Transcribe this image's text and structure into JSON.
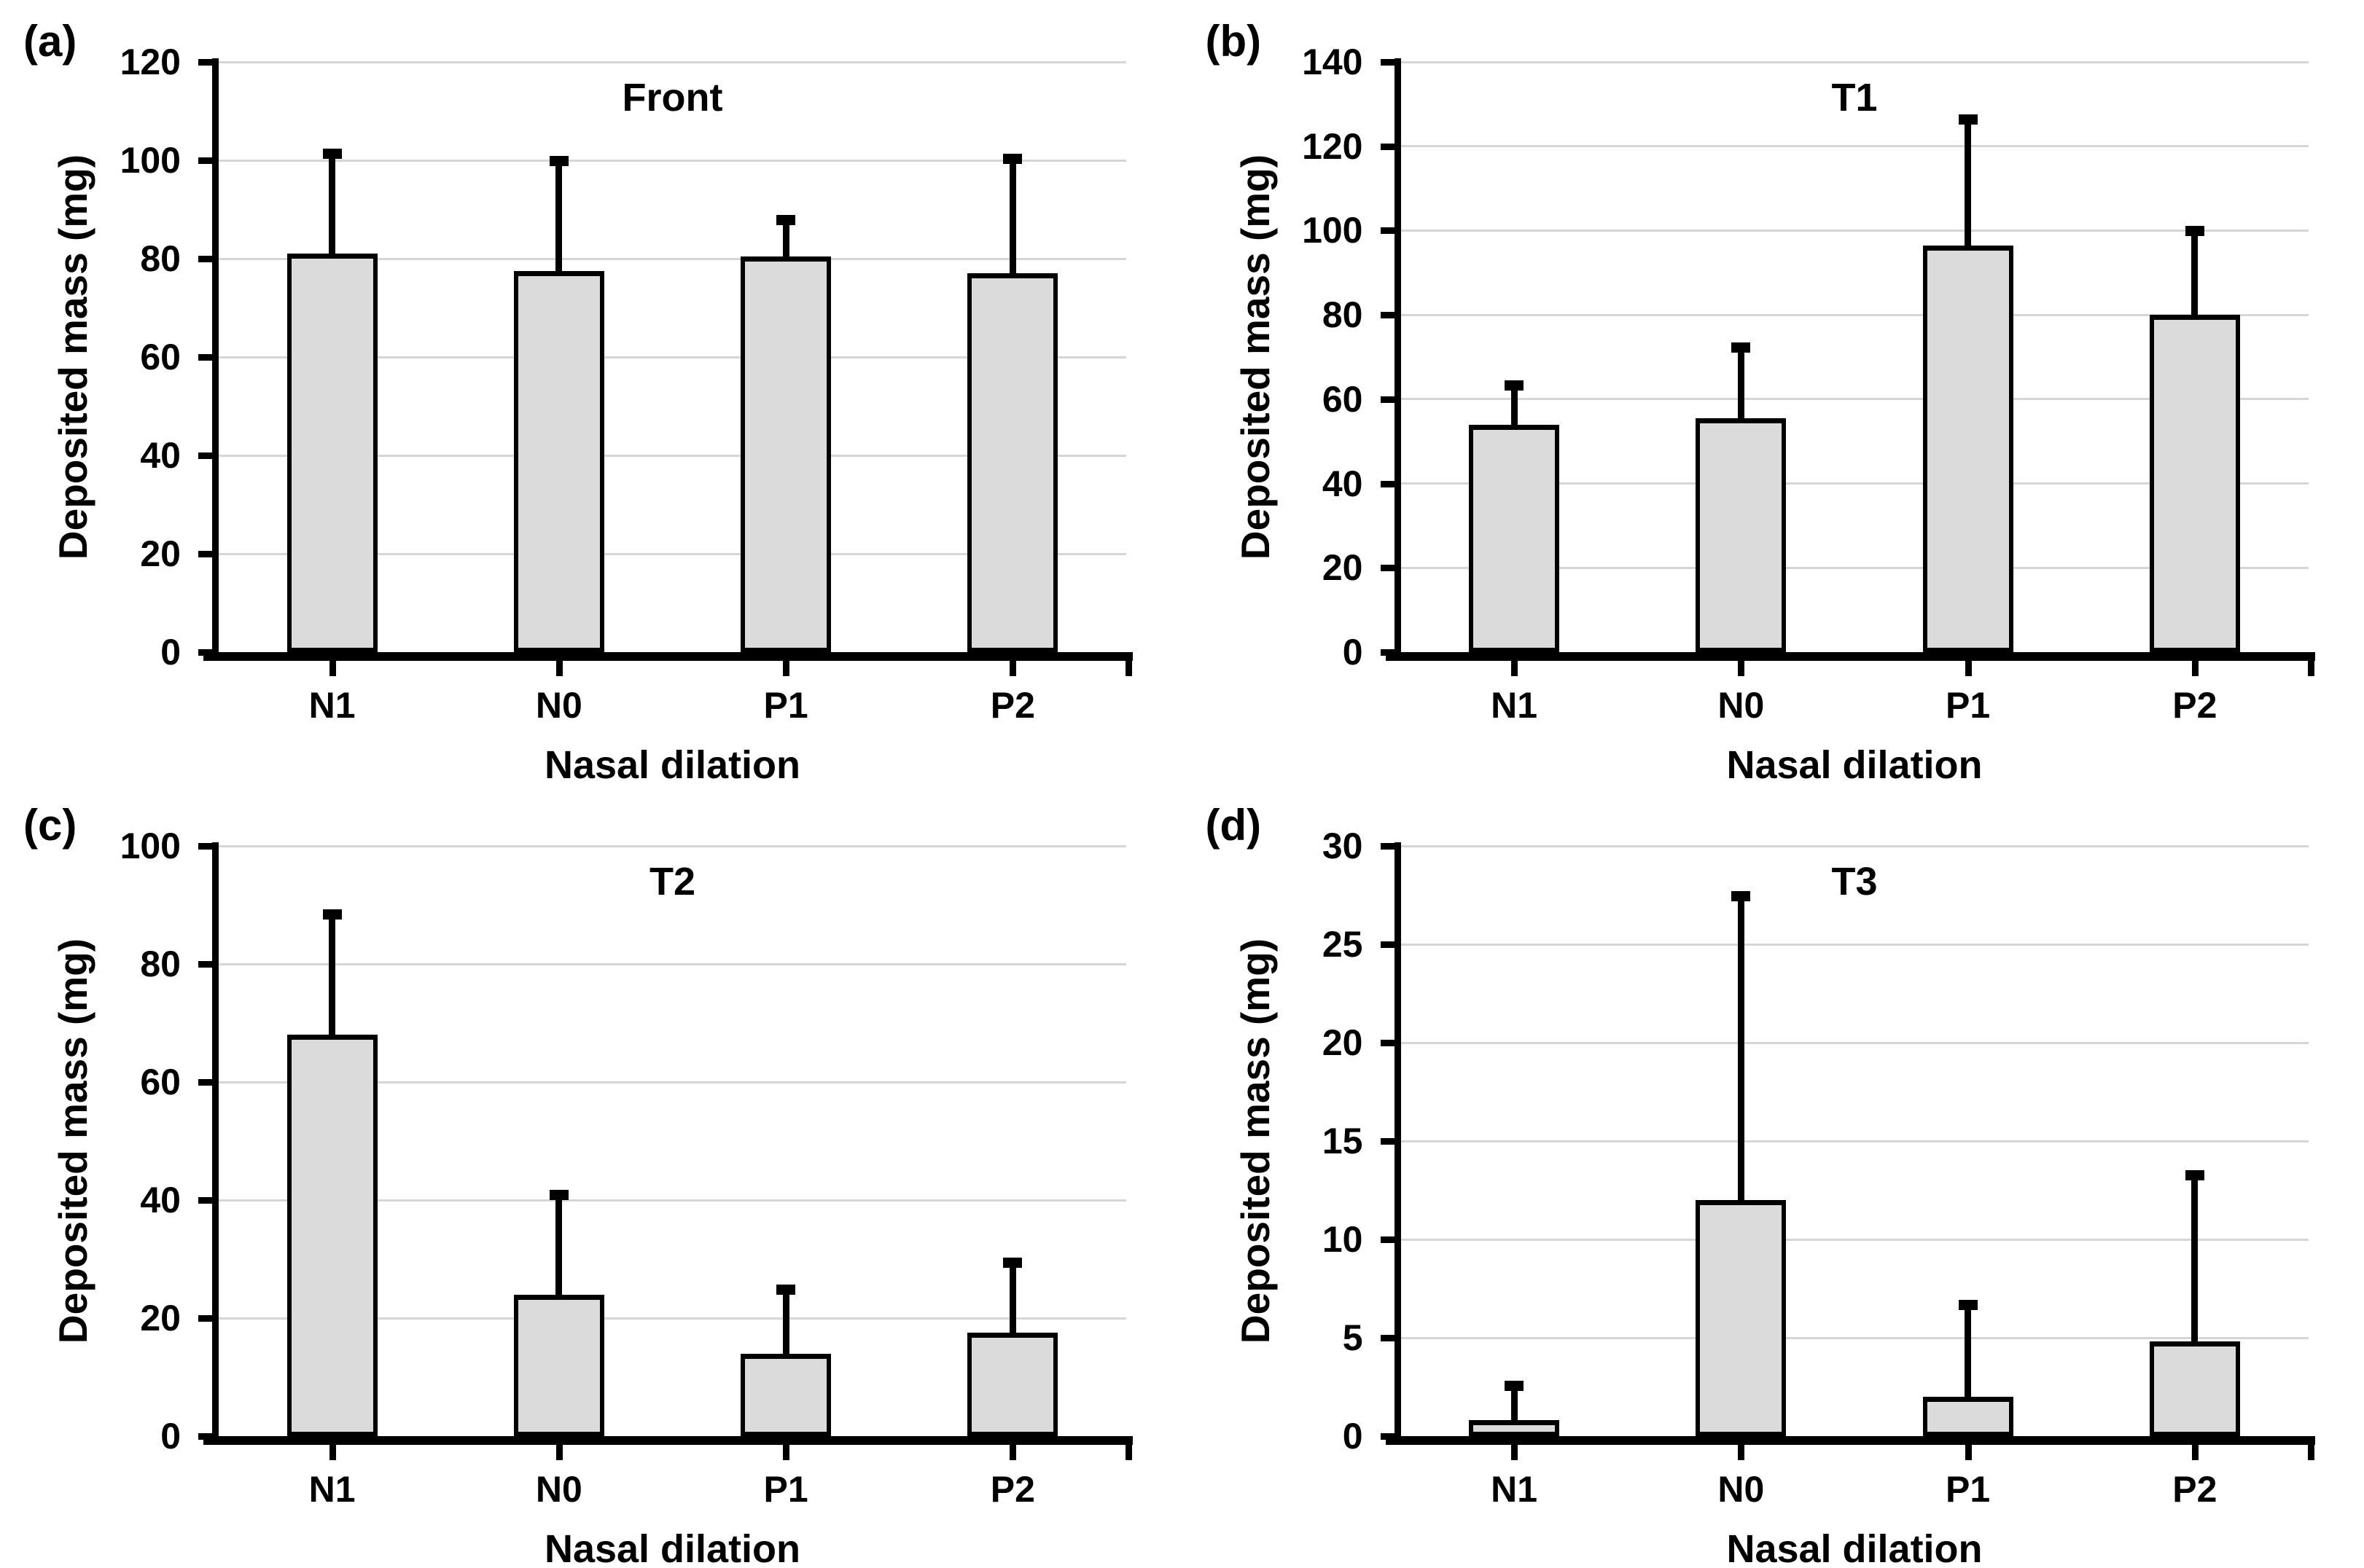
{
  "figure": {
    "background": "#ffffff",
    "bar_fill": "#dbdbdb",
    "bar_border": "#000000",
    "gridline_color": "#d6d6d6",
    "axis_color": "#000000",
    "text_color": "#000000"
  },
  "chart_data": [
    {
      "type": "bar",
      "letter": "(a)",
      "title": "Front",
      "categories": [
        "N1",
        "N0",
        "P1",
        "P2"
      ],
      "values": [
        81,
        77.5,
        80.5,
        77
      ],
      "error_upper": [
        20.5,
        22.5,
        7.5,
        23.5
      ],
      "xlabel": "Nasal dilation",
      "ylabel": "Deposited mass (mg)",
      "ylim": [
        0,
        120
      ],
      "ytick_step": 20,
      "yticks": [
        0,
        20,
        40,
        60,
        80,
        100,
        120
      ],
      "grid": true,
      "legend": false
    },
    {
      "type": "bar",
      "letter": "(b)",
      "title": "T1",
      "categories": [
        "N1",
        "N0",
        "P1",
        "P2"
      ],
      "values": [
        54,
        55.5,
        96.5,
        80
      ],
      "error_upper": [
        9.5,
        17,
        30,
        20
      ],
      "xlabel": "Nasal dilation",
      "ylabel": "Deposited mass (mg)",
      "ylim": [
        0,
        140
      ],
      "ytick_step": 20,
      "yticks": [
        0,
        20,
        40,
        60,
        80,
        100,
        120,
        140
      ],
      "grid": true,
      "legend": false
    },
    {
      "type": "bar",
      "letter": "(c)",
      "title": "T2",
      "categories": [
        "N1",
        "N0",
        "P1",
        "P2"
      ],
      "values": [
        68,
        24,
        14,
        17.5
      ],
      "error_upper": [
        20.5,
        17,
        11,
        12
      ],
      "xlabel": "Nasal dilation",
      "ylabel": "Deposited mass (mg)",
      "ylim": [
        0,
        100
      ],
      "ytick_step": 20,
      "yticks": [
        0,
        20,
        40,
        60,
        80,
        100
      ],
      "grid": true,
      "legend": false
    },
    {
      "type": "bar",
      "letter": "(d)",
      "title": "T3",
      "categories": [
        "N1",
        "N0",
        "P1",
        "P2"
      ],
      "values": [
        0.8,
        12,
        2,
        4.8
      ],
      "error_upper": [
        1.8,
        15.5,
        4.7,
        8.5
      ],
      "xlabel": "Nasal dilation",
      "ylabel": "Deposited mass (mg)",
      "ylim": [
        0,
        30
      ],
      "ytick_step": 5,
      "yticks": [
        0,
        5,
        10,
        15,
        20,
        25,
        30
      ],
      "grid": true,
      "legend": false
    }
  ]
}
